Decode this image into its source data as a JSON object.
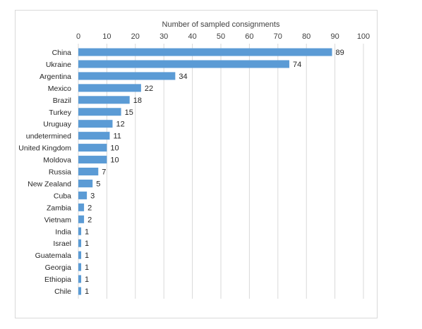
{
  "chart_data": {
    "type": "bar",
    "orientation": "horizontal",
    "title": "",
    "xlabel": "Number of sampled consignments",
    "ylabel": "",
    "axis_position": "top",
    "xlim": [
      0,
      100
    ],
    "xticks": [
      0,
      10,
      20,
      30,
      40,
      50,
      60,
      70,
      80,
      90,
      100
    ],
    "grid": true,
    "bar_color": "#5b9bd5",
    "grid_color": "#d9d9d9",
    "categories": [
      "China",
      "Ukraine",
      "Argentina",
      "Mexico",
      "Brazil",
      "Turkey",
      "Uruguay",
      "undetermined",
      "United Kingdom",
      "Moldova",
      "Russia",
      "New Zealand",
      "Cuba",
      "Zambia",
      "Vietnam",
      "India",
      "Israel",
      "Guatemala",
      "Georgia",
      "Ethiopia",
      "Chile"
    ],
    "values": [
      89,
      74,
      34,
      22,
      18,
      15,
      12,
      11,
      10,
      10,
      7,
      5,
      3,
      2,
      2,
      1,
      1,
      1,
      1,
      1,
      1
    ]
  }
}
